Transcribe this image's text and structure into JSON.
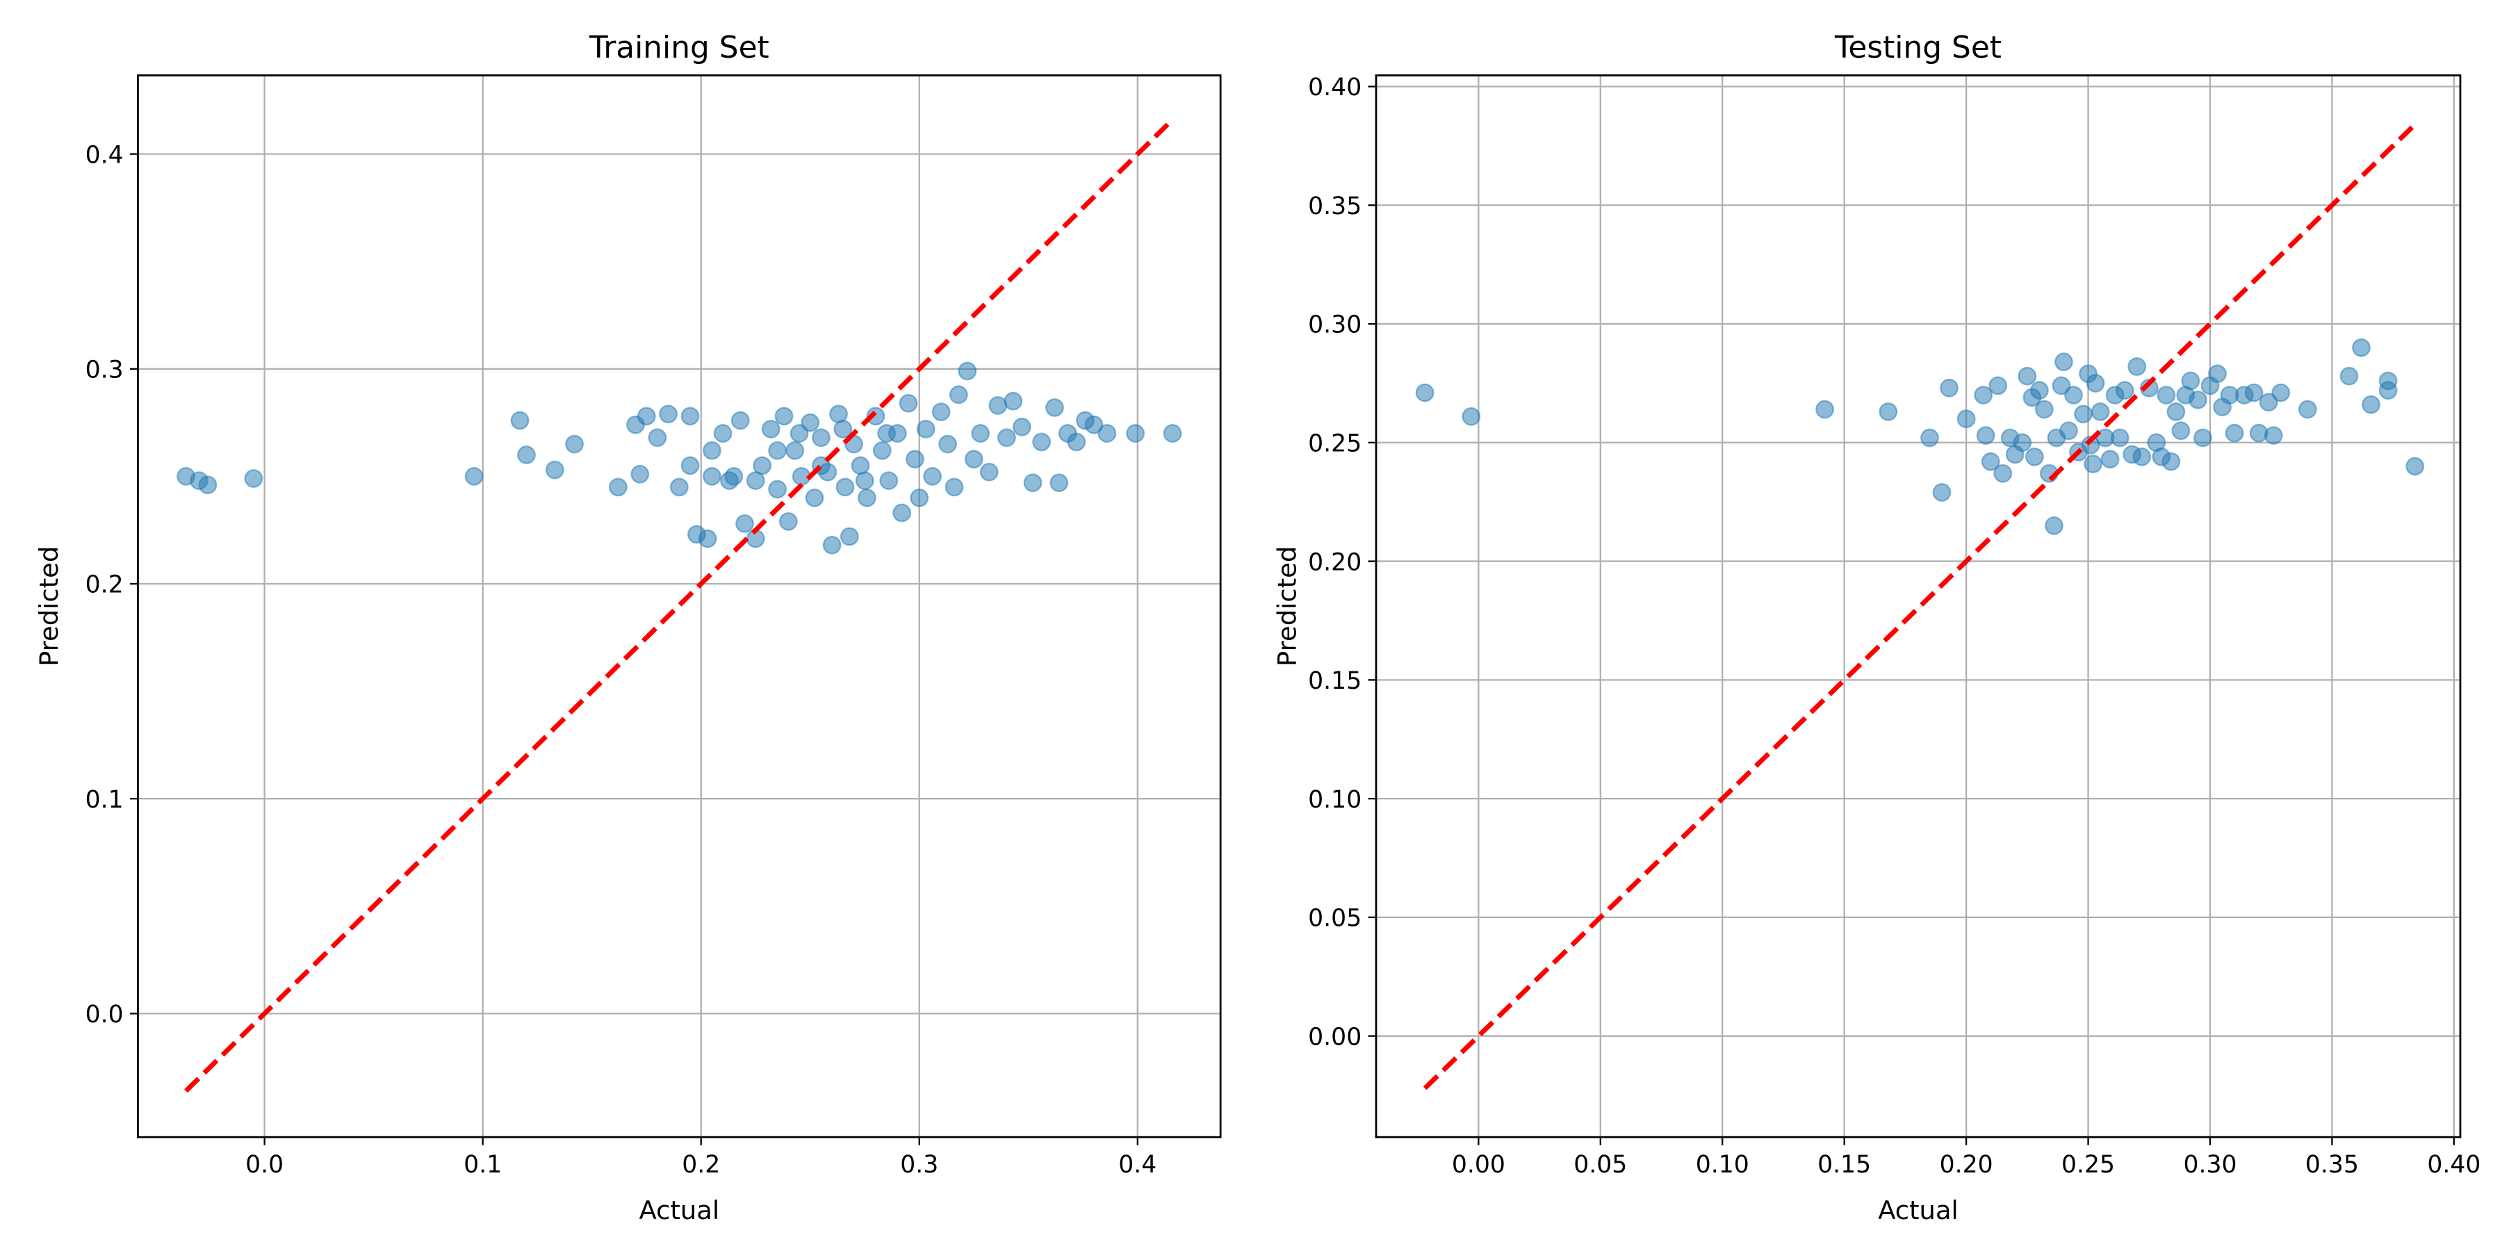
{
  "chart_data": [
    {
      "type": "scatter",
      "title": "Training Set",
      "xlabel": "Actual",
      "ylabel": "Predicted",
      "color": "#1f77b4",
      "grid": true,
      "xlim": [
        -0.058,
        0.438
      ],
      "ylim": [
        -0.0575,
        0.4366
      ],
      "xticks": [
        {
          "value": 0,
          "label": "0.0"
        },
        0.1,
        0.2,
        0.3,
        0.4
      ],
      "yticks": [
        {
          "value": 0,
          "label": "0.0"
        },
        0.1,
        0.2,
        0.3,
        0.4
      ],
      "x": [
        -0.036,
        -0.03,
        -0.026,
        -0.005,
        0.096,
        0.117,
        0.12,
        0.133,
        0.142,
        0.162,
        0.17,
        0.172,
        0.175,
        0.18,
        0.185,
        0.19,
        0.195,
        0.198,
        0.203,
        0.205,
        0.21,
        0.213,
        0.218,
        0.22,
        0.225,
        0.228,
        0.232,
        0.235,
        0.238,
        0.24,
        0.243,
        0.246,
        0.25,
        0.252,
        0.255,
        0.258,
        0.26,
        0.263,
        0.266,
        0.268,
        0.27,
        0.273,
        0.276,
        0.28,
        0.283,
        0.286,
        0.29,
        0.292,
        0.295,
        0.298,
        0.3,
        0.303,
        0.306,
        0.31,
        0.313,
        0.316,
        0.318,
        0.322,
        0.325,
        0.328,
        0.332,
        0.336,
        0.34,
        0.343,
        0.347,
        0.352,
        0.356,
        0.362,
        0.364,
        0.368,
        0.372,
        0.376,
        0.38,
        0.386,
        0.399,
        0.416,
        0.215,
        0.225,
        0.245,
        0.255,
        0.265,
        0.275,
        0.285,
        0.235,
        0.205,
        0.195
      ],
      "y": [
        0.25,
        0.248,
        0.246,
        0.249,
        0.25,
        0.276,
        0.26,
        0.253,
        0.265,
        0.245,
        0.274,
        0.251,
        0.278,
        0.268,
        0.279,
        0.245,
        0.278,
        0.223,
        0.221,
        0.262,
        0.27,
        0.248,
        0.276,
        0.228,
        0.221,
        0.255,
        0.272,
        0.244,
        0.278,
        0.229,
        0.262,
        0.25,
        0.275,
        0.24,
        0.268,
        0.252,
        0.218,
        0.279,
        0.245,
        0.222,
        0.265,
        0.255,
        0.24,
        0.278,
        0.262,
        0.248,
        0.27,
        0.233,
        0.284,
        0.258,
        0.24,
        0.272,
        0.25,
        0.28,
        0.265,
        0.245,
        0.288,
        0.299,
        0.258,
        0.27,
        0.252,
        0.283,
        0.268,
        0.285,
        0.273,
        0.247,
        0.266,
        0.282,
        0.247,
        0.27,
        0.266,
        0.276,
        0.274,
        0.27,
        0.27,
        0.27,
        0.25,
        0.248,
        0.27,
        0.255,
        0.272,
        0.248,
        0.27,
        0.262,
        0.25,
        0.255
      ],
      "reference_line": {
        "x": [
          -0.036,
          0.416
        ],
        "y": [
          -0.036,
          0.416
        ],
        "color": "#ff0000",
        "style": "dashed"
      }
    },
    {
      "type": "scatter",
      "title": "Testing Set",
      "xlabel": "Actual",
      "ylabel": "Predicted",
      "color": "#1f77b4",
      "grid": true,
      "xlim": [
        -0.042,
        0.4026
      ],
      "ylim": [
        -0.0426,
        0.4047
      ],
      "xticks": [
        {
          "value": 0,
          "label": "0.00"
        },
        0.05,
        {
          "value": 0.1,
          "label": "0.10"
        },
        0.15,
        {
          "value": 0.2,
          "label": "0.20"
        },
        0.25,
        {
          "value": 0.3,
          "label": "0.30"
        },
        0.35,
        {
          "value": 0.4,
          "label": "0.40"
        }
      ],
      "yticks": [
        {
          "value": 0,
          "label": "0.00"
        },
        0.05,
        {
          "value": 0.1,
          "label": "0.10"
        },
        0.15,
        {
          "value": 0.2,
          "label": "0.20"
        },
        0.25,
        {
          "value": 0.3,
          "label": "0.30"
        },
        0.35,
        {
          "value": 0.4,
          "label": "0.40"
        }
      ],
      "x": [
        -0.022,
        -0.003,
        0.142,
        0.168,
        0.185,
        0.19,
        0.193,
        0.2,
        0.207,
        0.208,
        0.21,
        0.213,
        0.215,
        0.218,
        0.22,
        0.223,
        0.225,
        0.227,
        0.228,
        0.23,
        0.232,
        0.234,
        0.236,
        0.237,
        0.239,
        0.24,
        0.242,
        0.244,
        0.246,
        0.248,
        0.25,
        0.251,
        0.252,
        0.253,
        0.255,
        0.257,
        0.259,
        0.261,
        0.263,
        0.265,
        0.268,
        0.27,
        0.272,
        0.275,
        0.278,
        0.28,
        0.282,
        0.284,
        0.286,
        0.288,
        0.29,
        0.292,
        0.295,
        0.297,
        0.3,
        0.303,
        0.305,
        0.308,
        0.31,
        0.314,
        0.318,
        0.32,
        0.324,
        0.326,
        0.329,
        0.34,
        0.357,
        0.362,
        0.366,
        0.373,
        0.373,
        0.384
      ],
      "y": [
        0.271,
        0.261,
        0.264,
        0.263,
        0.252,
        0.229,
        0.273,
        0.26,
        0.27,
        0.253,
        0.242,
        0.274,
        0.237,
        0.252,
        0.245,
        0.25,
        0.278,
        0.269,
        0.244,
        0.272,
        0.264,
        0.237,
        0.215,
        0.252,
        0.274,
        0.284,
        0.255,
        0.27,
        0.246,
        0.262,
        0.279,
        0.249,
        0.241,
        0.275,
        0.263,
        0.252,
        0.243,
        0.27,
        0.252,
        0.272,
        0.245,
        0.282,
        0.244,
        0.273,
        0.25,
        0.244,
        0.27,
        0.242,
        0.263,
        0.255,
        0.27,
        0.276,
        0.268,
        0.252,
        0.274,
        0.279,
        0.265,
        0.27,
        0.254,
        0.27,
        0.271,
        0.254,
        0.267,
        0.253,
        0.271,
        0.264,
        0.278,
        0.29,
        0.266,
        0.276,
        0.272,
        0.24
      ],
      "reference_line": {
        "x": [
          -0.022,
          0.384
        ],
        "y": [
          -0.022,
          0.384
        ],
        "color": "#ff0000",
        "style": "dashed"
      }
    }
  ]
}
